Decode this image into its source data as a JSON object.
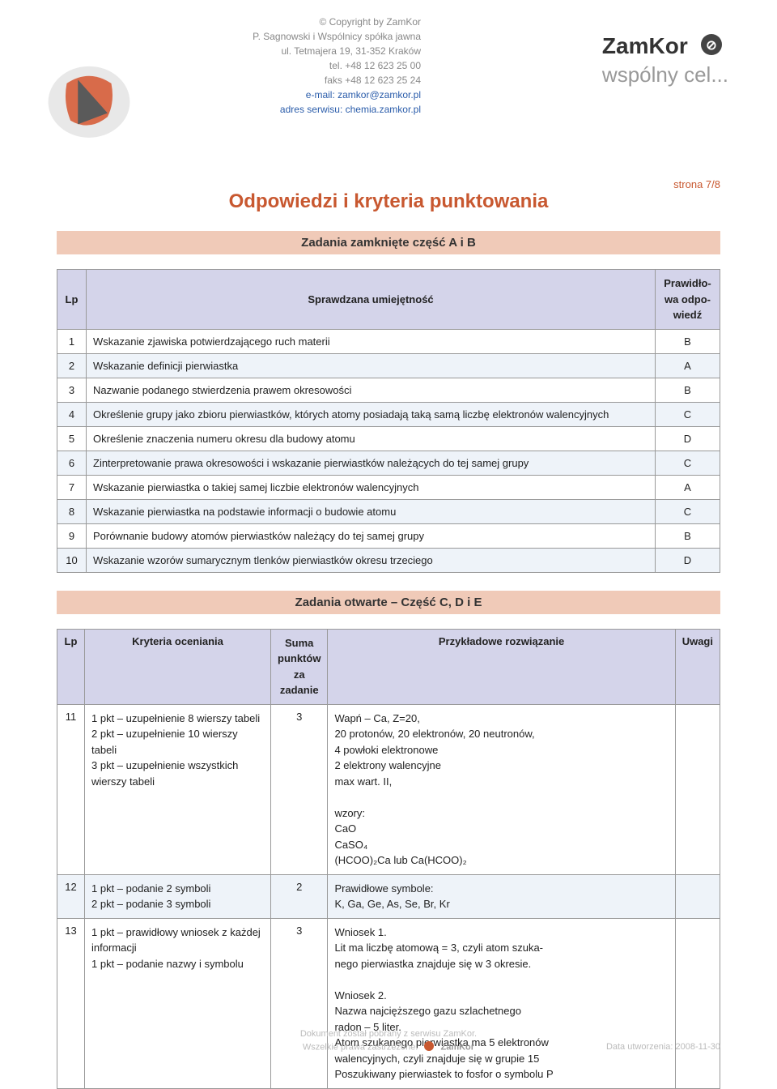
{
  "header": {
    "copyright_lines": [
      "© Copyright by ZamKor",
      "P. Sagnowski i Wspólnicy spółka jawna",
      "ul. Tetmajera 19, 31-352 Kraków",
      "tel. +48 12 623 25 00",
      "faks +48 12 623 25 24"
    ],
    "email": "e-mail: zamkor@zamkor.pl",
    "site": "adres serwisu: chemia.zamkor.pl",
    "brand_top": "ZamKor",
    "brand_sub": "wspólny cel...",
    "page_label": "strona 7/8"
  },
  "titles": {
    "main": "Odpowiedzi i kryteria punktowania",
    "section1": "Zadania zamknięte część A i B",
    "section2": "Zadania otwarte – Część C, D i E"
  },
  "table1": {
    "headers": {
      "lp": "Lp",
      "skill": "Sprawdzana umiejętność",
      "ans": "Prawidło-\nwa odpo-\nwiedź"
    },
    "rows": [
      {
        "lp": "1",
        "skill": "Wskazanie zjawiska potwierdzającego ruch materii",
        "ans": "B"
      },
      {
        "lp": "2",
        "skill": "Wskazanie definicji pierwiastka",
        "ans": "A"
      },
      {
        "lp": "3",
        "skill": "Nazwanie podanego stwierdzenia prawem okresowości",
        "ans": "B"
      },
      {
        "lp": "4",
        "skill": "Określenie grupy jako zbioru pierwiastków, których atomy posiadają taką samą liczbę elektronów walencyjnych",
        "ans": "C"
      },
      {
        "lp": "5",
        "skill": "Określenie znaczenia numeru okresu dla budowy atomu",
        "ans": "D"
      },
      {
        "lp": "6",
        "skill": "Zinterpretowanie prawa okresowości i wskazanie pierwiastków należących do tej samej grupy",
        "ans": "C"
      },
      {
        "lp": "7",
        "skill": "Wskazanie pierwiastka o takiej samej liczbie elektronów walencyjnych",
        "ans": "A"
      },
      {
        "lp": "8",
        "skill": "Wskazanie pierwiastka na podstawie informacji o budowie atomu",
        "ans": "C"
      },
      {
        "lp": "9",
        "skill": "Porównanie budowy atomów pierwiastków należący do tej samej grupy",
        "ans": "B"
      },
      {
        "lp": "10",
        "skill": "Wskazanie wzorów sumarycznym tlenków pierwiastków okresu trzeciego",
        "ans": "D"
      }
    ]
  },
  "table2": {
    "headers": {
      "lp": "Lp",
      "kryt": "Kryteria oceniania",
      "suma": "Suma\npunktów\nza zadanie",
      "przyklad": "Przykładowe rozwiązanie",
      "uwagi": "Uwagi"
    },
    "rows": [
      {
        "lp": "11",
        "kryt": "1 pkt – uzupełnienie 8 wierszy tabeli\n2 pkt – uzupełnienie 10 wierszy tabeli\n3 pkt – uzupełnienie wszystkich\n          wierszy tabeli",
        "suma": "3",
        "przyklad": "Wapń – Ca, Z=20,\n20 protonów, 20 elektronów, 20 neutronów,\n4 powłoki elektronowe\n2 elektrony walencyjne\nmax wart. II,\n\nwzory:\nCaO\nCaSO₄\n(HCOO)₂Ca lub Ca(HCOO)₂",
        "uwagi": ""
      },
      {
        "lp": "12",
        "kryt": "1 pkt – podanie 2 symboli\n2 pkt – podanie 3 symboli",
        "suma": "2",
        "przyklad": "Prawidłowe symbole:\nK, Ga, Ge, As, Se, Br, Kr",
        "uwagi": ""
      },
      {
        "lp": "13",
        "kryt": "1 pkt – prawidłowy wniosek z każdej\n          informacji\n1 pkt – podanie nazwy i symbolu",
        "suma": "3",
        "przyklad": "Wniosek 1.\nLit ma liczbę atomową = 3, czyli atom szuka-\nnego pierwiastka znajduje się w 3 okresie.\n\nWniosek 2.\nNazwa najcięższego gazu szlachetnego\nradon – 5 liter.\nAtom szukanego pierwiastka ma 5 elektronów\nwalencyjnych, czyli znajduje się w grupie 15\nPoszukiwany pierwiastek to fosfor o symbolu P",
        "uwagi": ""
      }
    ]
  },
  "footer": {
    "left": "Dokument został pobrany z serwisu ZamKor.\nWszelkie prawa zastrzeżone.",
    "brand": "ZamKor",
    "right": "Data utworzenia: 2008-11-30"
  }
}
